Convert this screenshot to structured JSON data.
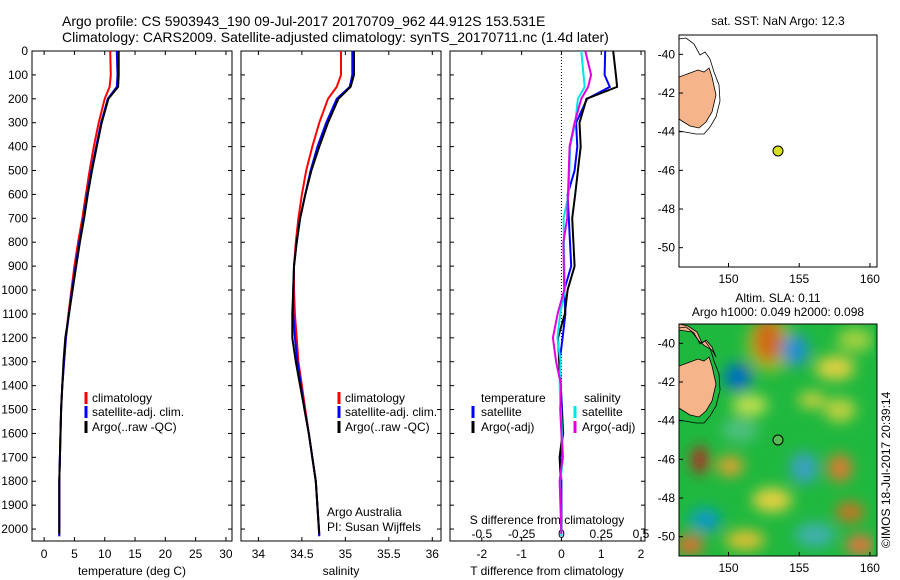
{
  "header": {
    "line1": "Argo profile: CS 5903943_190 09-Jul-2017 20170709_962 44.912S 153.531E",
    "line2": "Climatology: CARS2009. Satellite-adjusted climatology: synTS_20170711.nc (1.4d later)"
  },
  "legend_temp": [
    "climatology",
    "satellite-adj. clim.",
    "Argo(..raw -QC)"
  ],
  "legend_sal": [
    "climatology",
    "satellite-adj. clim.",
    "Argo(..raw -QC)"
  ],
  "legend_diff": {
    "temp_title": "temperature",
    "sal_title": "salinity",
    "temp_items": [
      "satellite",
      "Argo(-adj)"
    ],
    "sal_items": [
      "satellite",
      "Argo(-adj)"
    ]
  },
  "credits": {
    "line1": "Argo Australia",
    "line2": "PI: Susan Wijffels"
  },
  "map1": {
    "title": "sat. SST: NaN Argo: 12.3"
  },
  "map2": {
    "title1": "Altim. SLA: 0.11",
    "title2": "Argo h1000: 0.049 h2000: 0.098"
  },
  "side_credit": "©IMOS 18-Jul-2017 20:39:14",
  "colors": {
    "climatology": "#ff0000",
    "satellite": "#0000ff",
    "argo": "#000000",
    "sal_satellite": "#00e5e5",
    "sal_argo": "#e000e0",
    "land": "#f5b48a",
    "float": "#d6e021",
    "float_map2": "#55bb55"
  },
  "chart_data": [
    {
      "type": "line",
      "xlabel": "temperature (deg C)",
      "ylabel": "",
      "xlim": [
        -2,
        31
      ],
      "ylim": [
        2050,
        0
      ],
      "xticks": [
        0,
        5,
        10,
        15,
        20,
        25,
        30
      ],
      "yticks": [
        0,
        100,
        200,
        300,
        400,
        500,
        600,
        700,
        800,
        900,
        1000,
        1100,
        1200,
        1300,
        1400,
        1500,
        1600,
        1700,
        1800,
        1900,
        2000
      ],
      "series": [
        {
          "name": "climatology",
          "x": [
            10.9,
            11.0,
            10.8,
            10.0,
            9.0,
            8.2,
            7.5,
            6.9,
            6.3,
            5.6,
            5.0,
            4.5,
            4.0,
            3.6,
            3.3,
            3.0,
            2.8,
            2.7,
            2.6,
            2.5,
            2.5
          ],
          "y": [
            0,
            100,
            150,
            200,
            300,
            400,
            500,
            600,
            700,
            800,
            900,
            1000,
            1100,
            1200,
            1300,
            1400,
            1500,
            1600,
            1700,
            1800,
            2030
          ]
        },
        {
          "name": "satellite-adj. clim.",
          "x": [
            12.0,
            12.1,
            12.0,
            10.5,
            9.4,
            8.6,
            7.8,
            7.1,
            6.5,
            5.8,
            5.2,
            4.6,
            4.1,
            3.6,
            3.3,
            3.0,
            2.8,
            2.7,
            2.6,
            2.5,
            2.5
          ],
          "y": [
            0,
            100,
            150,
            200,
            300,
            400,
            500,
            600,
            700,
            800,
            900,
            1000,
            1100,
            1200,
            1300,
            1400,
            1500,
            1600,
            1700,
            1800,
            2030
          ]
        },
        {
          "name": "Argo(..raw -QC)",
          "x": [
            12.3,
            12.3,
            12.2,
            10.6,
            9.5,
            8.7,
            7.9,
            7.2,
            6.6,
            5.9,
            5.3,
            4.7,
            4.1,
            3.5,
            3.2,
            3.0,
            2.8,
            2.7,
            2.6,
            2.5,
            2.5
          ],
          "y": [
            0,
            100,
            150,
            200,
            300,
            400,
            500,
            600,
            700,
            800,
            900,
            1000,
            1100,
            1200,
            1300,
            1400,
            1500,
            1600,
            1700,
            1800,
            2020
          ]
        }
      ]
    },
    {
      "type": "line",
      "xlabel": "salinity",
      "ylabel": "",
      "xlim": [
        33.8,
        36.1
      ],
      "ylim": [
        2050,
        0
      ],
      "xticks": [
        34,
        34.5,
        35,
        35.5,
        36
      ],
      "series": [
        {
          "name": "climatology",
          "x": [
            34.95,
            34.95,
            34.9,
            34.8,
            34.7,
            34.62,
            34.55,
            34.5,
            34.46,
            34.43,
            34.41,
            34.41,
            34.42,
            34.44,
            34.46,
            34.5,
            34.54,
            34.58,
            34.62,
            34.66,
            34.7
          ],
          "y": [
            0,
            100,
            150,
            200,
            300,
            400,
            500,
            600,
            700,
            800,
            900,
            1000,
            1100,
            1200,
            1300,
            1400,
            1500,
            1600,
            1700,
            1800,
            2030
          ]
        },
        {
          "name": "satellite-adj. clim.",
          "x": [
            35.08,
            35.08,
            35.05,
            34.9,
            34.78,
            34.68,
            34.6,
            34.54,
            34.48,
            34.44,
            34.41,
            34.4,
            34.4,
            34.42,
            34.45,
            34.49,
            34.53,
            34.58,
            34.62,
            34.66,
            34.7
          ],
          "y": [
            0,
            100,
            150,
            200,
            300,
            400,
            500,
            600,
            700,
            800,
            900,
            1000,
            1100,
            1200,
            1300,
            1400,
            1500,
            1600,
            1700,
            1800,
            2030
          ]
        },
        {
          "name": "Argo(..raw -QC)",
          "x": [
            35.1,
            35.1,
            35.06,
            34.92,
            34.8,
            34.7,
            34.61,
            34.54,
            34.48,
            34.44,
            34.41,
            34.4,
            34.39,
            34.39,
            34.43,
            34.48,
            34.53,
            34.58,
            34.62,
            34.66,
            34.7
          ],
          "y": [
            0,
            100,
            150,
            200,
            300,
            400,
            500,
            600,
            700,
            800,
            900,
            1000,
            1100,
            1200,
            1300,
            1400,
            1500,
            1600,
            1700,
            1800,
            2020
          ]
        }
      ]
    },
    {
      "type": "line",
      "xlabel": "T difference from climatology",
      "top_label": "S difference from climatology",
      "xlim": [
        -2.8,
        2.1
      ],
      "ylim": [
        2050,
        0
      ],
      "xticks": [
        -2,
        -1,
        0,
        1,
        2
      ],
      "top_ticks": [
        "-0.5",
        "-0.25",
        "0",
        "0.25",
        "0.5"
      ],
      "top_tick_positions": [
        -2,
        -1,
        0,
        1,
        2
      ],
      "series": [
        {
          "name": "temperature satellite",
          "x": [
            1.1,
            1.1,
            1.2,
            0.6,
            0.4,
            0.4,
            0.3,
            0.2,
            0.2,
            0.2,
            0.2,
            0.1,
            0.1,
            0.0,
            0.0,
            0.0,
            0.0,
            0.0,
            0.0,
            0.0,
            0.0
          ],
          "y": [
            0,
            100,
            150,
            200,
            300,
            400,
            500,
            600,
            700,
            800,
            900,
            1000,
            1100,
            1200,
            1300,
            1400,
            1500,
            1600,
            1700,
            1800,
            2030
          ]
        },
        {
          "name": "temperature Argo(-adj)",
          "x": [
            1.3,
            1.4,
            1.4,
            0.6,
            0.5,
            0.5,
            0.4,
            0.3,
            0.3,
            0.3,
            0.3,
            0.2,
            0.1,
            -0.1,
            -0.1,
            0.0,
            0.0,
            0.0,
            0.0,
            0.0,
            0.0
          ],
          "y": [
            0,
            100,
            150,
            200,
            300,
            400,
            500,
            600,
            700,
            800,
            900,
            1000,
            1100,
            1200,
            1300,
            1400,
            1500,
            1600,
            1700,
            1800,
            2020
          ]
        },
        {
          "name": "salinity satellite",
          "x": [
            0.5,
            0.6,
            0.6,
            0.4,
            0.3,
            0.25,
            0.2,
            0.15,
            0.1,
            0.08,
            0.06,
            0.04,
            0.0,
            -0.1,
            -0.05,
            0.0,
            0.0,
            0.0,
            0.0,
            0.0,
            0.0
          ],
          "y": [
            0,
            100,
            150,
            200,
            300,
            400,
            500,
            600,
            700,
            800,
            900,
            1000,
            1100,
            1200,
            1300,
            1400,
            1500,
            1600,
            1700,
            1800,
            2030
          ]
        },
        {
          "name": "salinity Argo(-adj)",
          "x": [
            0.6,
            0.7,
            0.7,
            0.5,
            0.3,
            0.25,
            0.2,
            0.15,
            0.1,
            0.08,
            0.06,
            0.04,
            -0.05,
            -0.2,
            -0.15,
            -0.05,
            0.0,
            0.0,
            0.0,
            0.0,
            0.0
          ],
          "y": [
            0,
            100,
            150,
            200,
            300,
            400,
            500,
            600,
            700,
            800,
            900,
            1000,
            1100,
            1200,
            1300,
            1400,
            1500,
            1600,
            1700,
            1800,
            2020
          ]
        }
      ]
    },
    {
      "type": "scatter",
      "title": "sat. SST: NaN Argo: 12.3",
      "xlim": [
        146.5,
        160.5
      ],
      "ylim": [
        -51,
        -39
      ],
      "xticks": [
        150,
        155,
        160
      ],
      "yticks": [
        -40,
        -42,
        -44,
        -46,
        -48,
        -50
      ],
      "points": [
        {
          "x": 153.531,
          "y": -44.912
        }
      ]
    },
    {
      "type": "heatmap",
      "title": "Altim. SLA: 0.11",
      "subtitle": "Argo h1000: 0.049 h2000: 0.098",
      "xlim": [
        146.5,
        160.5
      ],
      "ylim": [
        -51,
        -39
      ],
      "xticks": [
        150,
        155,
        160
      ],
      "yticks": [
        -40,
        -42,
        -44,
        -46,
        -48,
        -50
      ],
      "points": [
        {
          "x": 153.531,
          "y": -44.912
        }
      ]
    }
  ]
}
